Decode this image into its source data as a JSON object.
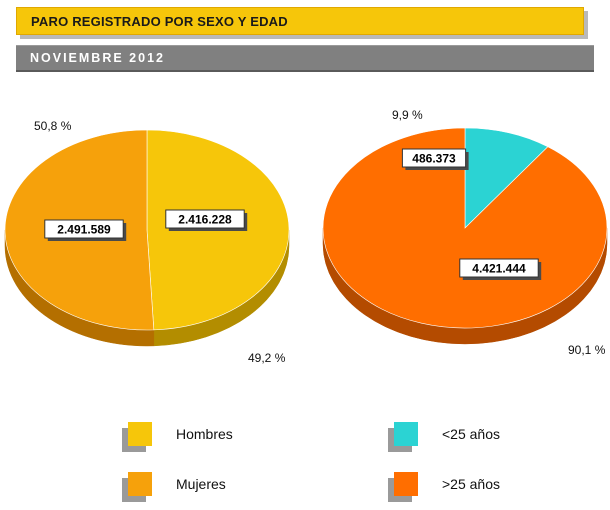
{
  "header": {
    "title": "PARO REGISTRADO POR SEXO Y EDAD",
    "subtitle": "NOVIEMBRE 2012"
  },
  "chart_data": [
    {
      "type": "pie",
      "slices": [
        {
          "label": "Hombres",
          "value": 2416228,
          "value_label": "2.416.228",
          "percent_label": "49,2 %",
          "color": "#f6c60a",
          "side_color": "#b38d00"
        },
        {
          "label": "Mujeres",
          "value": 2491589,
          "value_label": "2.491.589",
          "percent_label": "50,8 %",
          "color": "#f6a10b",
          "side_color": "#b46f00"
        }
      ]
    },
    {
      "type": "pie",
      "slices": [
        {
          "label": "<25 años",
          "value": 486373,
          "value_label": "486.373",
          "percent_label": "9,9 %",
          "color": "#2bd3d3",
          "side_color": "#1a8f8f"
        },
        {
          "label": ">25 años",
          "value": 4421444,
          "value_label": "4.421.444",
          "percent_label": "90,1 %",
          "color": "#ff6e00",
          "side_color": "#b44b00"
        }
      ]
    }
  ],
  "legend": [
    {
      "label": "Hombres",
      "color": "#f6c60a"
    },
    {
      "label": "Mujeres",
      "color": "#f6a10b"
    },
    {
      "label": "<25 años",
      "color": "#2bd3d3"
    },
    {
      "label": ">25 años",
      "color": "#ff6e00"
    }
  ]
}
